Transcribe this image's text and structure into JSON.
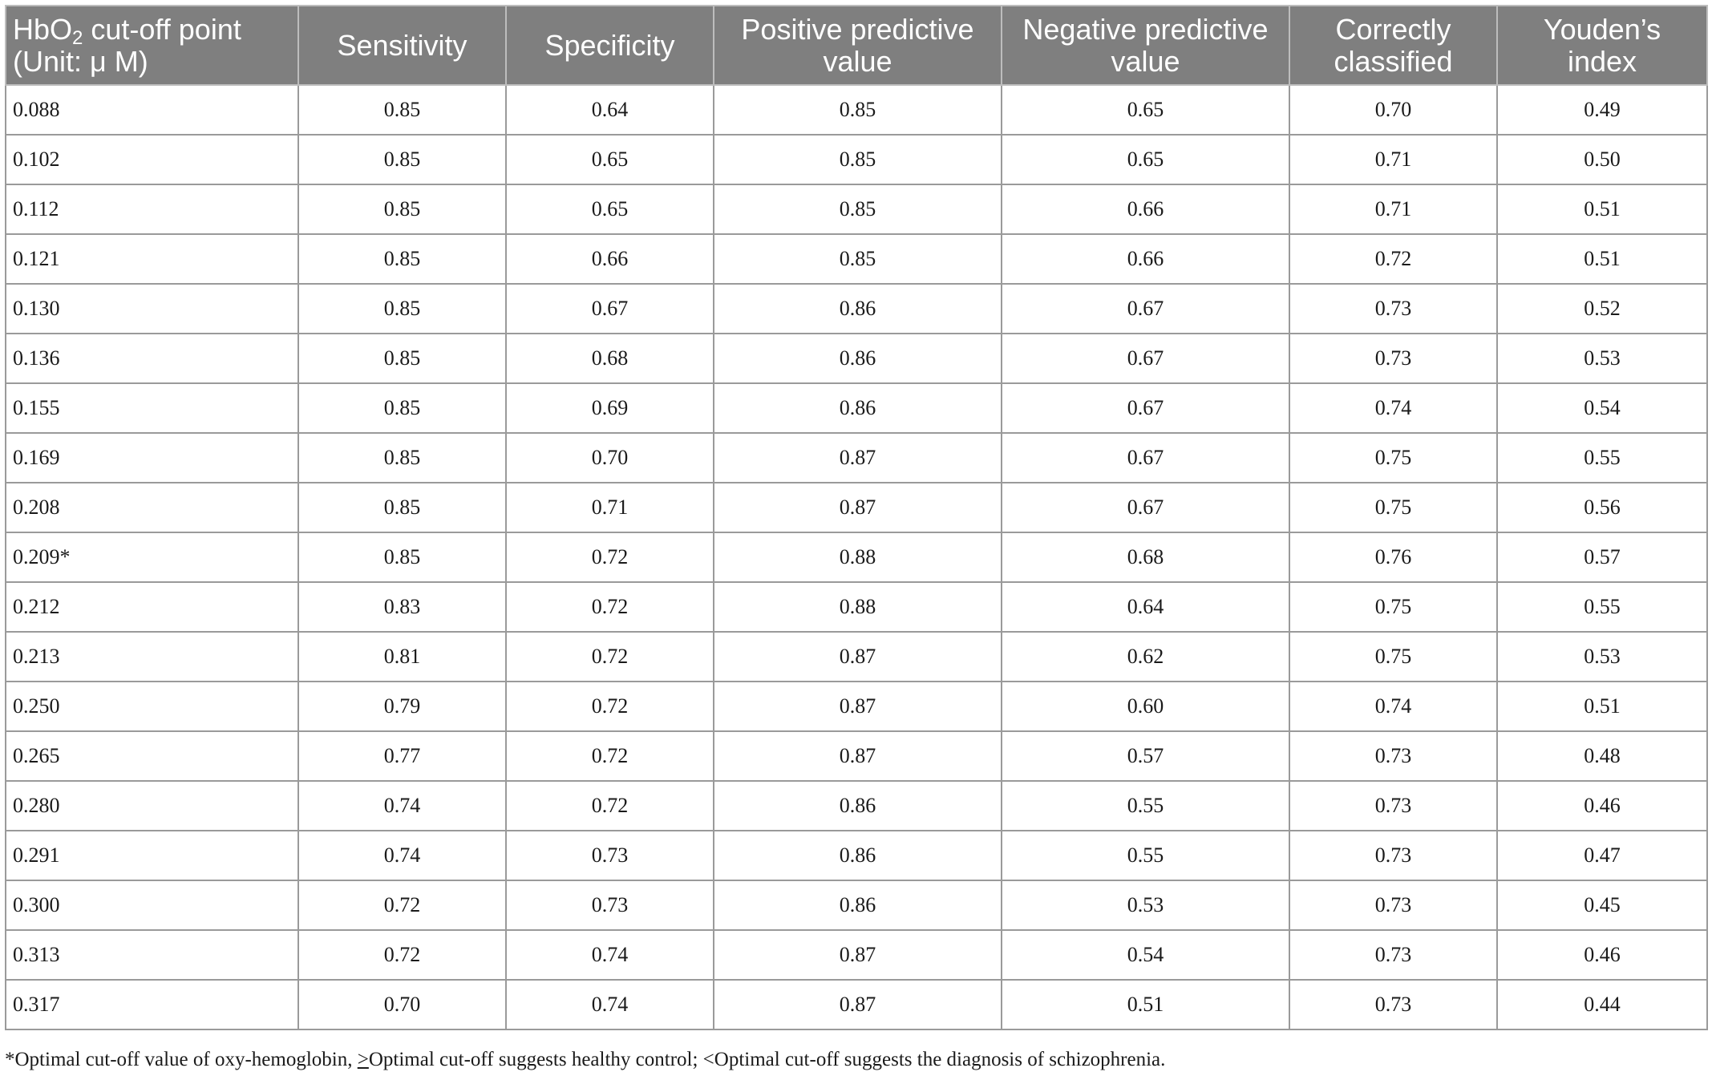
{
  "table": {
    "headers": [
      {
        "prefix": "HbO",
        "sub": "2",
        "suffix": " cut-off point",
        "line2": "(Unit: μ M)"
      },
      {
        "line1": "Sensitivity",
        "line2": ""
      },
      {
        "line1": "Specificity",
        "line2": ""
      },
      {
        "line1": "Positive predictive",
        "line2": "value"
      },
      {
        "line1": "Negative predictive",
        "line2": "value"
      },
      {
        "line1": "Correctly",
        "line2": "classified"
      },
      {
        "line1": "Youden’s",
        "line2": "index"
      }
    ],
    "rows": [
      [
        "0.088",
        "0.85",
        "0.64",
        "0.85",
        "0.65",
        "0.70",
        "0.49"
      ],
      [
        "0.102",
        "0.85",
        "0.65",
        "0.85",
        "0.65",
        "0.71",
        "0.50"
      ],
      [
        "0.112",
        "0.85",
        "0.65",
        "0.85",
        "0.66",
        "0.71",
        "0.51"
      ],
      [
        "0.121",
        "0.85",
        "0.66",
        "0.85",
        "0.66",
        "0.72",
        "0.51"
      ],
      [
        "0.130",
        "0.85",
        "0.67",
        "0.86",
        "0.67",
        "0.73",
        "0.52"
      ],
      [
        "0.136",
        "0.85",
        "0.68",
        "0.86",
        "0.67",
        "0.73",
        "0.53"
      ],
      [
        "0.155",
        "0.85",
        "0.69",
        "0.86",
        "0.67",
        "0.74",
        "0.54"
      ],
      [
        "0.169",
        "0.85",
        "0.70",
        "0.87",
        "0.67",
        "0.75",
        "0.55"
      ],
      [
        "0.208",
        "0.85",
        "0.71",
        "0.87",
        "0.67",
        "0.75",
        "0.56"
      ],
      [
        "0.209*",
        "0.85",
        "0.72",
        "0.88",
        "0.68",
        "0.76",
        "0.57"
      ],
      [
        "0.212",
        "0.83",
        "0.72",
        "0.88",
        "0.64",
        "0.75",
        "0.55"
      ],
      [
        "0.213",
        "0.81",
        "0.72",
        "0.87",
        "0.62",
        "0.75",
        "0.53"
      ],
      [
        "0.250",
        "0.79",
        "0.72",
        "0.87",
        "0.60",
        "0.74",
        "0.51"
      ],
      [
        "0.265",
        "0.77",
        "0.72",
        "0.87",
        "0.57",
        "0.73",
        "0.48"
      ],
      [
        "0.280",
        "0.74",
        "0.72",
        "0.86",
        "0.55",
        "0.73",
        "0.46"
      ],
      [
        "0.291",
        "0.74",
        "0.73",
        "0.86",
        "0.55",
        "0.73",
        "0.47"
      ],
      [
        "0.300",
        "0.72",
        "0.73",
        "0.86",
        "0.53",
        "0.73",
        "0.45"
      ],
      [
        "0.313",
        "0.72",
        "0.74",
        "0.87",
        "0.54",
        "0.73",
        "0.46"
      ],
      [
        "0.317",
        "0.70",
        "0.74",
        "0.87",
        "0.51",
        "0.73",
        "0.44"
      ]
    ]
  },
  "footnote": {
    "part1": "*Optimal cut-off value of oxy-hemoglobin, ",
    "symbol": ">",
    "part2": "Optimal cut-off suggests healthy control; <Optimal cut-off suggests the diagnosis of schizophrenia."
  },
  "colors": {
    "header_bg": "#7f7f7f",
    "header_text": "#ffffff",
    "grid": "#9a9a9a"
  }
}
